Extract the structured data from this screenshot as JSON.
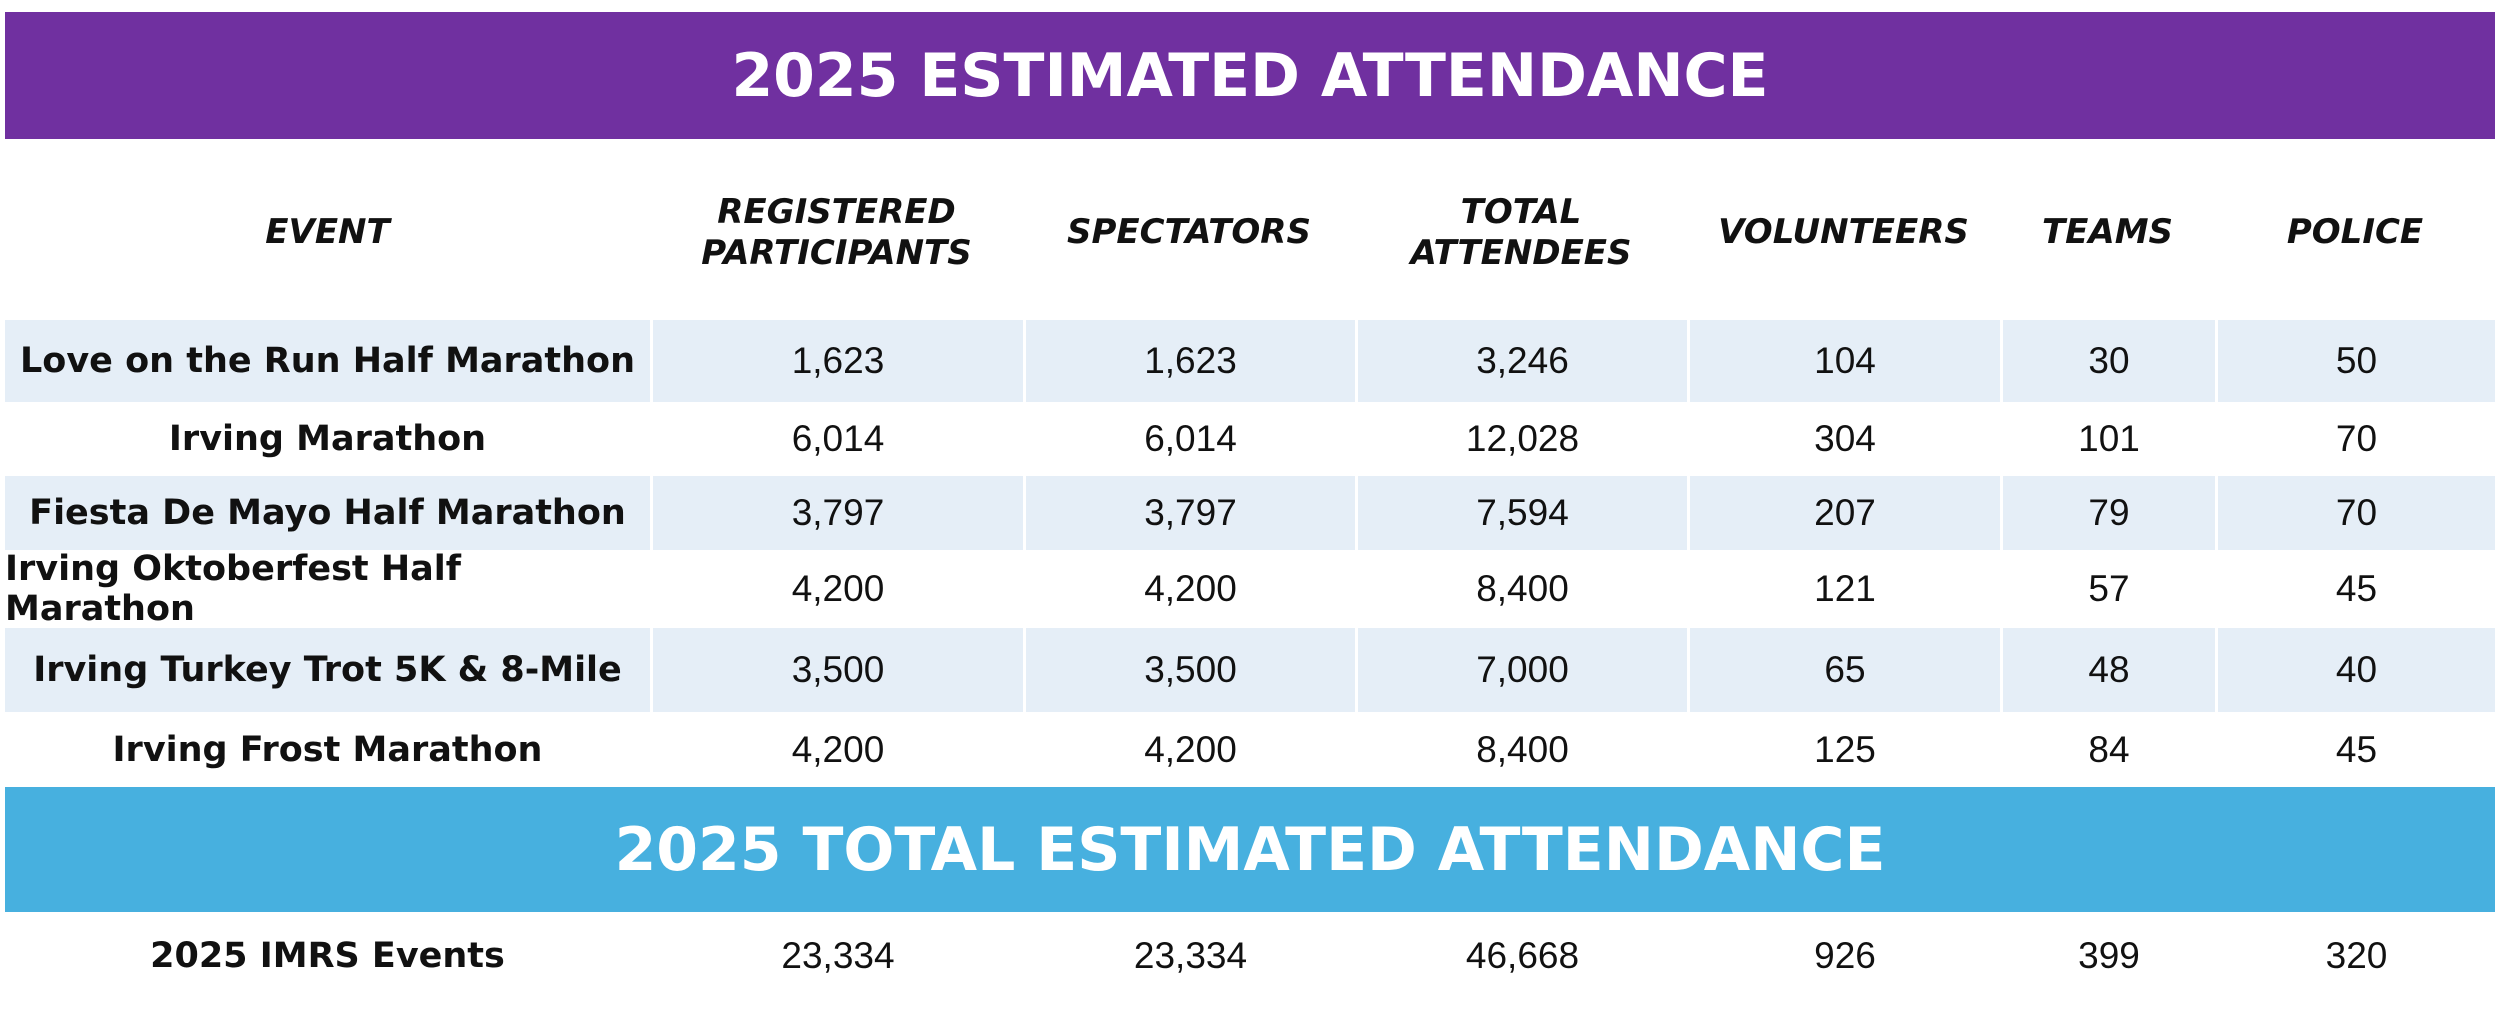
{
  "title": "2025 ESTIMATED ATTENDANCE",
  "columns": [
    {
      "label_lines": [
        "EVENT"
      ]
    },
    {
      "label_lines": [
        "REGISTERED",
        "PARTICIPANTS"
      ]
    },
    {
      "label_lines": [
        "SPECTATORS"
      ]
    },
    {
      "label_lines": [
        "TOTAL",
        "ATTENDEES"
      ]
    },
    {
      "label_lines": [
        "VOLUNTEERS"
      ]
    },
    {
      "label_lines": [
        "TEAMS"
      ]
    },
    {
      "label_lines": [
        "POLICE"
      ]
    }
  ],
  "rows": [
    {
      "event": "Love on the Run Half Marathon",
      "registered": "1,623",
      "spectators": "1,623",
      "total": "3,246",
      "volunteers": "104",
      "teams": "30",
      "police": "50",
      "shaded": true
    },
    {
      "event": "Irving Marathon",
      "registered": "6,014",
      "spectators": "6,014",
      "total": "12,028",
      "volunteers": "304",
      "teams": "101",
      "police": "70",
      "shaded": false
    },
    {
      "event": "Fiesta De Mayo Half Marathon",
      "registered": "3,797",
      "spectators": "3,797",
      "total": "7,594",
      "volunteers": "207",
      "teams": "79",
      "police": "70",
      "shaded": true
    },
    {
      "event": "Irving Oktoberfest Half Marathon",
      "registered": "4,200",
      "spectators": "4,200",
      "total": "8,400",
      "volunteers": "121",
      "teams": "57",
      "police": "45",
      "shaded": false
    },
    {
      "event": "Irving Turkey Trot 5K & 8-Mile",
      "registered": "3,500",
      "spectators": "3,500",
      "total": "7,000",
      "volunteers": "65",
      "teams": "48",
      "police": "40",
      "shaded": true
    },
    {
      "event": "Irving Frost Marathon",
      "registered": "4,200",
      "spectators": "4,200",
      "total": "8,400",
      "volunteers": "125",
      "teams": "84",
      "police": "45",
      "shaded": false
    }
  ],
  "total_title": "2025 TOTAL ESTIMATED ATTENDANCE",
  "totals": {
    "event": "2025 IMRS Events",
    "registered": "23,334",
    "spectators": "23,334",
    "total": "46,668",
    "volunteers": "926",
    "teams": "399",
    "police": "320"
  },
  "colors": {
    "title_banner": "#7030a0",
    "total_banner": "#47b0df",
    "row_shade": "#e5eef7"
  }
}
